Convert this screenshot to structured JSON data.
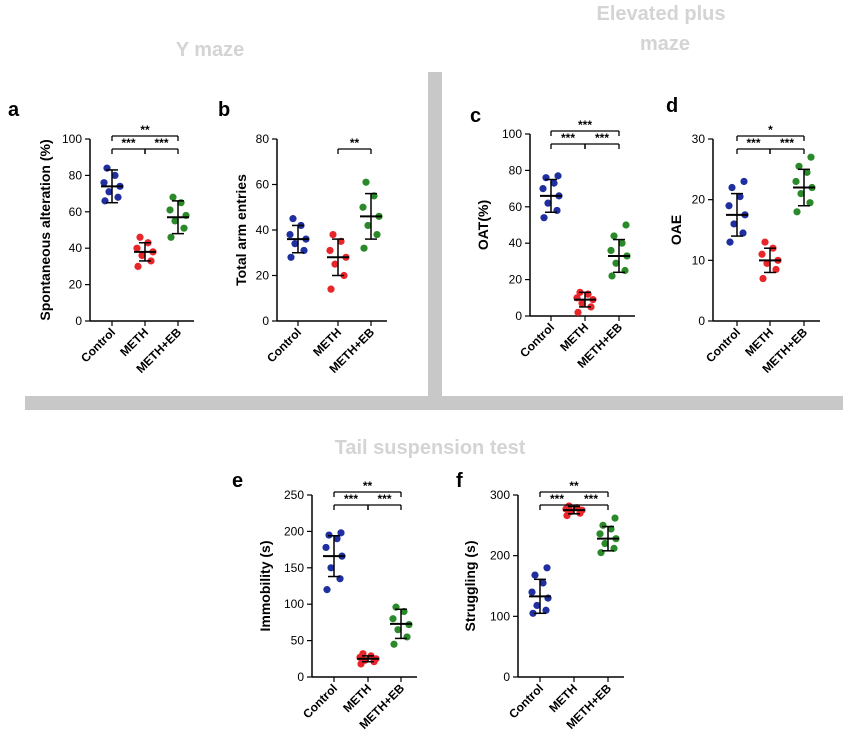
{
  "sections": {
    "y_maze": "Y maze",
    "elevated_line1": "Elevated plus",
    "elevated_line2": "maze",
    "tail": "Tail suspension test"
  },
  "colors": {
    "Control": "#1f2fa0",
    "METH": "#e8262a",
    "METH+EB": "#2a8a2a",
    "divider": "#c8c8c8",
    "section_text": "#d4d4d4"
  },
  "chart_data": [
    {
      "id": "a",
      "label": "a",
      "type": "scatter",
      "ylabel": "Spontaneous alteration (%)",
      "ylim": [
        0,
        100
      ],
      "yticks": [
        0,
        20,
        40,
        60,
        80,
        100
      ],
      "categories": [
        "Control",
        "METH",
        "METH+EB"
      ],
      "groups": [
        {
          "name": "Control",
          "mean": 74,
          "sd": 9,
          "points": [
            66,
            68,
            71,
            74,
            76,
            80,
            84
          ]
        },
        {
          "name": "METH",
          "mean": 38,
          "sd": 5,
          "points": [
            30,
            33,
            36,
            38,
            40,
            43,
            46
          ]
        },
        {
          "name": "METH+EB",
          "mean": 57,
          "sd": 9,
          "points": [
            46,
            51,
            55,
            58,
            61,
            65,
            68
          ]
        }
      ],
      "significance": [
        {
          "from": 0,
          "to": 1,
          "label": "***",
          "level": 0
        },
        {
          "from": 1,
          "to": 2,
          "label": "***",
          "level": 0
        },
        {
          "from": 0,
          "to": 2,
          "label": "**",
          "level": 1
        }
      ]
    },
    {
      "id": "b",
      "label": "b",
      "type": "scatter",
      "ylabel": "Total arm entries",
      "ylim": [
        0,
        80
      ],
      "yticks": [
        0,
        20,
        40,
        60,
        80
      ],
      "categories": [
        "Control",
        "METH",
        "METH+EB"
      ],
      "groups": [
        {
          "name": "Control",
          "mean": 36,
          "sd": 6,
          "points": [
            28,
            31,
            34,
            36,
            38,
            42,
            45
          ]
        },
        {
          "name": "METH",
          "mean": 28,
          "sd": 8,
          "points": [
            14,
            20,
            25,
            28,
            31,
            35,
            38
          ]
        },
        {
          "name": "METH+EB",
          "mean": 46,
          "sd": 10,
          "points": [
            32,
            38,
            42,
            46,
            50,
            55,
            61
          ]
        }
      ],
      "significance": [
        {
          "from": 1,
          "to": 2,
          "label": "**",
          "level": 0
        }
      ]
    },
    {
      "id": "c",
      "label": "c",
      "type": "scatter",
      "ylabel": "OAT(%)",
      "ylim": [
        0,
        100
      ],
      "yticks": [
        0,
        20,
        40,
        60,
        80,
        100
      ],
      "categories": [
        "Control",
        "METH",
        "METH+EB"
      ],
      "groups": [
        {
          "name": "Control",
          "mean": 66,
          "sd": 9,
          "points": [
            54,
            58,
            62,
            66,
            70,
            73,
            76,
            77
          ]
        },
        {
          "name": "METH",
          "mean": 9,
          "sd": 4,
          "points": [
            2,
            5,
            7,
            9,
            10,
            12,
            13
          ]
        },
        {
          "name": "METH+EB",
          "mean": 33,
          "sd": 9,
          "points": [
            22,
            25,
            29,
            33,
            36,
            40,
            44,
            50
          ]
        }
      ],
      "significance": [
        {
          "from": 0,
          "to": 1,
          "label": "***",
          "level": 0
        },
        {
          "from": 1,
          "to": 2,
          "label": "***",
          "level": 0
        },
        {
          "from": 0,
          "to": 2,
          "label": "***",
          "level": 1
        }
      ]
    },
    {
      "id": "d",
      "label": "d",
      "type": "scatter",
      "ylabel": "OAE",
      "ylim": [
        0,
        30
      ],
      "yticks": [
        0,
        10,
        20,
        30
      ],
      "categories": [
        "Control",
        "METH",
        "METH+EB"
      ],
      "groups": [
        {
          "name": "Control",
          "mean": 17.5,
          "sd": 3.5,
          "points": [
            13,
            14.5,
            16,
            17.5,
            19,
            20.5,
            22,
            23
          ]
        },
        {
          "name": "METH",
          "mean": 10,
          "sd": 2,
          "points": [
            7,
            8.5,
            9.5,
            10,
            11,
            12,
            13
          ]
        },
        {
          "name": "METH+EB",
          "mean": 22,
          "sd": 3,
          "points": [
            18,
            19.5,
            21,
            22,
            23,
            24.5,
            25.5,
            27
          ]
        }
      ],
      "significance": [
        {
          "from": 0,
          "to": 1,
          "label": "***",
          "level": 0
        },
        {
          "from": 1,
          "to": 2,
          "label": "***",
          "level": 0
        },
        {
          "from": 0,
          "to": 2,
          "label": "*",
          "level": 1
        }
      ]
    },
    {
      "id": "e",
      "label": "e",
      "type": "scatter",
      "ylabel": "Immobility (s)",
      "ylim": [
        0,
        250
      ],
      "yticks": [
        0,
        50,
        100,
        150,
        200,
        250
      ],
      "categories": [
        "Control",
        "METH",
        "METH+EB"
      ],
      "groups": [
        {
          "name": "Control",
          "mean": 166,
          "sd": 28,
          "points": [
            120,
            135,
            150,
            166,
            178,
            190,
            195,
            198
          ]
        },
        {
          "name": "METH",
          "mean": 25,
          "sd": 4,
          "points": [
            18,
            21,
            23,
            25,
            27,
            29,
            32
          ]
        },
        {
          "name": "METH+EB",
          "mean": 73,
          "sd": 20,
          "points": [
            45,
            55,
            65,
            72,
            80,
            90,
            96
          ]
        }
      ],
      "significance": [
        {
          "from": 0,
          "to": 1,
          "label": "***",
          "level": 0
        },
        {
          "from": 1,
          "to": 2,
          "label": "***",
          "level": 0
        },
        {
          "from": 0,
          "to": 2,
          "label": "**",
          "level": 1
        }
      ]
    },
    {
      "id": "f",
      "label": "f",
      "type": "scatter",
      "ylabel": "Struggling (s)",
      "ylim": [
        0,
        300
      ],
      "yticks": [
        0,
        100,
        200,
        300
      ],
      "categories": [
        "Control",
        "METH",
        "METH+EB"
      ],
      "groups": [
        {
          "name": "Control",
          "mean": 133,
          "sd": 28,
          "points": [
            105,
            110,
            118,
            130,
            140,
            155,
            168,
            180
          ]
        },
        {
          "name": "METH",
          "mean": 275,
          "sd": 6,
          "points": [
            266,
            270,
            273,
            275,
            277,
            279,
            282
          ]
        },
        {
          "name": "METH+EB",
          "mean": 228,
          "sd": 20,
          "points": [
            205,
            212,
            220,
            228,
            236,
            244,
            250,
            262
          ]
        }
      ],
      "significance": [
        {
          "from": 0,
          "to": 1,
          "label": "***",
          "level": 0
        },
        {
          "from": 1,
          "to": 2,
          "label": "***",
          "level": 0
        },
        {
          "from": 0,
          "to": 2,
          "label": "**",
          "level": 1
        }
      ]
    }
  ]
}
